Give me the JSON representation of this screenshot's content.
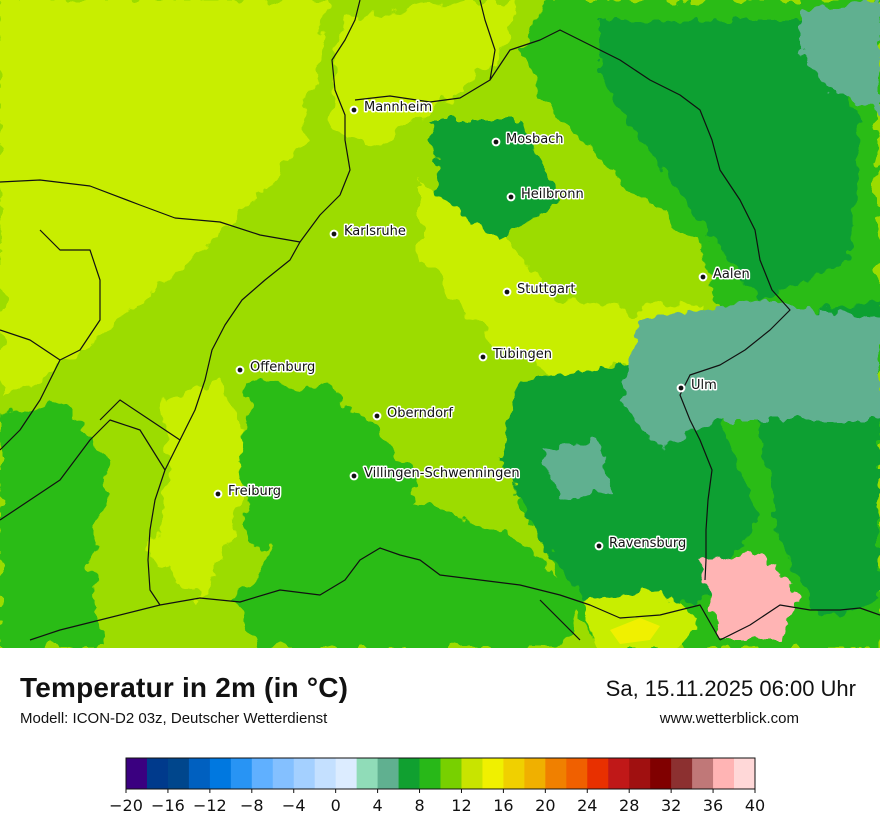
{
  "header": {
    "title": "Temperatur in 2m (in °C)",
    "model": "Modell: ICON-D2 03z, Deutscher Wetterdienst",
    "datetime": "Sa, 15.11.2025 06:00 Uhr",
    "website": "www.wetterblick.com"
  },
  "cities": [
    {
      "name": "Mannheim",
      "icon": "city-dot-icon"
    },
    {
      "name": "Mosbach",
      "icon": "city-dot-icon"
    },
    {
      "name": "Heilbronn",
      "icon": "city-dot-icon"
    },
    {
      "name": "Karlsruhe",
      "icon": "city-dot-icon"
    },
    {
      "name": "Aalen",
      "icon": "city-dot-icon"
    },
    {
      "name": "Stuttgart",
      "icon": "city-dot-icon"
    },
    {
      "name": "Tübingen",
      "icon": "city-dot-icon"
    },
    {
      "name": "Offenburg",
      "icon": "city-dot-icon"
    },
    {
      "name": "Ulm",
      "icon": "city-dot-icon"
    },
    {
      "name": "Oberndorf",
      "icon": "city-dot-icon"
    },
    {
      "name": "Villingen-Schwenningen",
      "icon": "city-dot-icon"
    },
    {
      "name": "Freiburg",
      "icon": "city-dot-icon"
    },
    {
      "name": "Ravensburg",
      "icon": "city-dot-icon"
    }
  ],
  "legend": {
    "ticks": [
      "−20",
      "−16",
      "−12",
      "−8",
      "−4",
      "0",
      "4",
      "8",
      "12",
      "16",
      "20",
      "24",
      "28",
      "32",
      "36",
      "40"
    ],
    "colors": [
      "#3a0080",
      "#003a8c",
      "#00468c",
      "#0060c0",
      "#0078e0",
      "#2894f4",
      "#60b0ff",
      "#84c0ff",
      "#a4d0ff",
      "#c4e0ff",
      "#dcecff",
      "#90dcb8",
      "#60b090",
      "#10a030",
      "#28b818",
      "#78d000",
      "#c8e400",
      "#f0f000",
      "#f0d000",
      "#f0b000",
      "#f08000",
      "#f06000",
      "#e83000",
      "#c01818",
      "#a01010",
      "#800000",
      "#8c3030",
      "#c07878",
      "#ffb4b4",
      "#ffd8d8"
    ]
  },
  "map_palette": {
    "light_yellow_green": "#c8ee00",
    "lime": "#9cdc00",
    "green": "#2cbc18",
    "dark_green": "#10a030",
    "teal": "#60b090"
  }
}
